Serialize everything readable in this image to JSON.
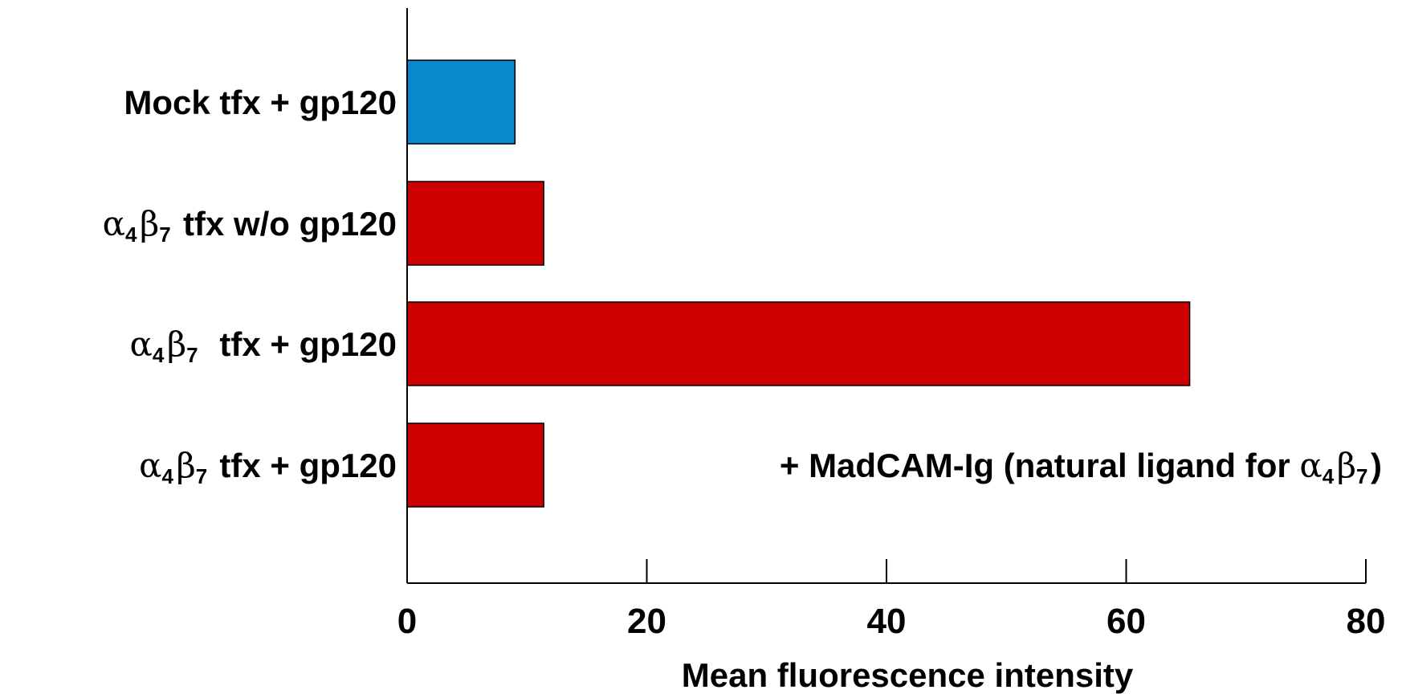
{
  "chart_data": {
    "type": "bar",
    "orientation": "horizontal",
    "title": "",
    "xlabel": "Mean fluorescence intensity",
    "ylabel": "",
    "xlim": [
      0,
      80
    ],
    "x_ticks": [
      0,
      20,
      40,
      60,
      80
    ],
    "grid": false,
    "categories": [
      {
        "label": "Mock tfx + gp120",
        "value": 9
      },
      {
        "label": "α4β7 tfx w/o gp120",
        "value": 11.4
      },
      {
        "label": "α4β7  tfx + gp120",
        "value": 65.3
      },
      {
        "label": "α4β7 tfx + gp120",
        "value": 11.4
      }
    ],
    "colors": [
      "#0a88cc",
      "#cc0000",
      "#cc0000",
      "#cc0000"
    ],
    "annotations": [
      {
        "text": "+ MadCAM-Ig (natural ligand for α4β7)",
        "category_index": 3
      }
    ]
  }
}
